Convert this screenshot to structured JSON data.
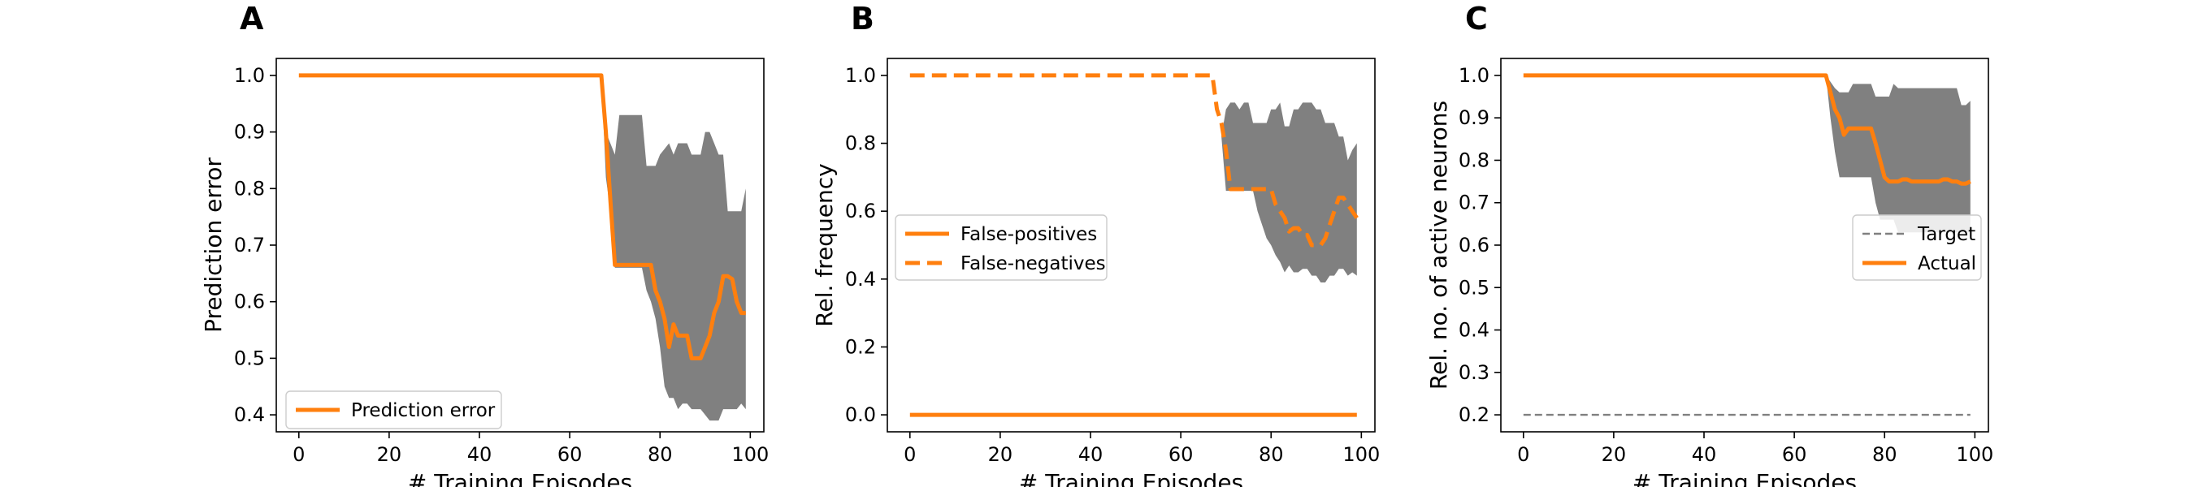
{
  "chart_data": [
    {
      "type": "line",
      "panel_label": "A",
      "xlabel": "# Training Episodes",
      "ylabel": "Prediction error",
      "xlim": [
        -5,
        103
      ],
      "ylim": [
        0.37,
        1.03
      ],
      "xticks": [
        0,
        20,
        40,
        60,
        80,
        100
      ],
      "yticks": [
        0.4,
        0.5,
        0.6,
        0.7,
        0.8,
        0.9,
        1.0
      ],
      "ytick_labels": [
        "0.4",
        "0.5",
        "0.6",
        "0.7",
        "0.8",
        "0.9",
        "1.0"
      ],
      "grid": false,
      "legend_position": "lower-left",
      "band": {
        "color": "#808080",
        "x": [
          67,
          68,
          69,
          70,
          71,
          72,
          73,
          74,
          75,
          76,
          77,
          78,
          79,
          80,
          81,
          82,
          83,
          84,
          85,
          86,
          87,
          88,
          89,
          90,
          91,
          92,
          93,
          94,
          95,
          96,
          97,
          98,
          99
        ],
        "upper": [
          1.0,
          0.9,
          0.88,
          0.86,
          0.93,
          0.93,
          0.93,
          0.93,
          0.93,
          0.93,
          0.84,
          0.84,
          0.84,
          0.86,
          0.87,
          0.88,
          0.86,
          0.88,
          0.88,
          0.88,
          0.86,
          0.86,
          0.86,
          0.9,
          0.9,
          0.88,
          0.86,
          0.86,
          0.76,
          0.76,
          0.76,
          0.76,
          0.8
        ],
        "lower": [
          1.0,
          0.82,
          0.76,
          0.66,
          0.66,
          0.66,
          0.66,
          0.66,
          0.66,
          0.66,
          0.62,
          0.6,
          0.57,
          0.52,
          0.45,
          0.43,
          0.43,
          0.41,
          0.42,
          0.42,
          0.41,
          0.41,
          0.41,
          0.4,
          0.39,
          0.39,
          0.39,
          0.41,
          0.41,
          0.41,
          0.41,
          0.42,
          0.41
        ]
      },
      "series": [
        {
          "name": "Prediction error",
          "style": "solid",
          "color": "#ff7f0e",
          "x": [
            0,
            67,
            68,
            69,
            70,
            71,
            72,
            73,
            74,
            75,
            76,
            77,
            78,
            79,
            80,
            81,
            82,
            83,
            84,
            85,
            86,
            87,
            88,
            89,
            90,
            91,
            92,
            93,
            94,
            95,
            96,
            97,
            98,
            99
          ],
          "y": [
            1.0,
            1.0,
            0.9,
            0.78,
            0.665,
            0.665,
            0.665,
            0.665,
            0.665,
            0.665,
            0.665,
            0.665,
            0.665,
            0.62,
            0.6,
            0.57,
            0.52,
            0.56,
            0.54,
            0.54,
            0.54,
            0.5,
            0.5,
            0.5,
            0.52,
            0.54,
            0.58,
            0.6,
            0.645,
            0.645,
            0.64,
            0.6,
            0.58,
            0.58
          ]
        }
      ]
    },
    {
      "type": "line",
      "panel_label": "B",
      "xlabel": "# Training Episodes",
      "ylabel": "Rel. frequency",
      "xlim": [
        -5,
        103
      ],
      "ylim": [
        -0.05,
        1.05
      ],
      "xticks": [
        0,
        20,
        40,
        60,
        80,
        100
      ],
      "yticks": [
        0.0,
        0.2,
        0.4,
        0.6,
        0.8,
        1.0
      ],
      "ytick_labels": [
        "0.0",
        "0.2",
        "0.4",
        "0.6",
        "0.8",
        "1.0"
      ],
      "grid": false,
      "legend_position": "center-left",
      "band": {
        "color": "#808080",
        "x": [
          67,
          68,
          69,
          70,
          71,
          72,
          73,
          74,
          75,
          76,
          77,
          78,
          79,
          80,
          81,
          82,
          83,
          84,
          85,
          86,
          87,
          88,
          89,
          90,
          91,
          92,
          93,
          94,
          95,
          96,
          97,
          98,
          99
        ],
        "upper": [
          1.0,
          0.86,
          0.82,
          0.9,
          0.92,
          0.92,
          0.9,
          0.92,
          0.92,
          0.86,
          0.86,
          0.86,
          0.86,
          0.9,
          0.9,
          0.92,
          0.85,
          0.85,
          0.9,
          0.9,
          0.92,
          0.92,
          0.92,
          0.9,
          0.9,
          0.86,
          0.86,
          0.86,
          0.82,
          0.82,
          0.75,
          0.78,
          0.8
        ],
        "lower": [
          1.0,
          0.86,
          0.82,
          0.66,
          0.66,
          0.66,
          0.66,
          0.66,
          0.66,
          0.66,
          0.6,
          0.56,
          0.52,
          0.5,
          0.47,
          0.45,
          0.42,
          0.44,
          0.42,
          0.42,
          0.43,
          0.43,
          0.41,
          0.41,
          0.39,
          0.39,
          0.41,
          0.41,
          0.43,
          0.43,
          0.41,
          0.42,
          0.41
        ]
      },
      "series": [
        {
          "name": "False-positives",
          "style": "solid",
          "color": "#ff7f0e",
          "x": [
            0,
            99
          ],
          "y": [
            0.0,
            0.0
          ]
        },
        {
          "name": "False-negatives",
          "style": "dashed",
          "color": "#ff7f0e",
          "x": [
            0,
            67,
            68,
            69,
            70,
            71,
            72,
            73,
            74,
            75,
            76,
            77,
            78,
            79,
            80,
            81,
            82,
            83,
            84,
            85,
            86,
            87,
            88,
            89,
            90,
            91,
            92,
            93,
            94,
            95,
            96,
            97,
            98,
            99
          ],
          "y": [
            1.0,
            1.0,
            0.9,
            0.86,
            0.78,
            0.665,
            0.665,
            0.665,
            0.665,
            0.665,
            0.665,
            0.665,
            0.665,
            0.665,
            0.665,
            0.62,
            0.6,
            0.58,
            0.54,
            0.55,
            0.55,
            0.53,
            0.53,
            0.5,
            0.5,
            0.5,
            0.52,
            0.56,
            0.6,
            0.64,
            0.64,
            0.62,
            0.6,
            0.58
          ]
        }
      ]
    },
    {
      "type": "line",
      "panel_label": "C",
      "xlabel": "# Training Episodes",
      "ylabel": "Rel. no. of active neurons",
      "xlim": [
        -5,
        103
      ],
      "ylim": [
        0.16,
        1.04
      ],
      "xticks": [
        0,
        20,
        40,
        60,
        80,
        100
      ],
      "yticks": [
        0.2,
        0.3,
        0.4,
        0.5,
        0.6,
        0.7,
        0.8,
        0.9,
        1.0
      ],
      "ytick_labels": [
        "0.2",
        "0.3",
        "0.4",
        "0.5",
        "0.6",
        "0.7",
        "0.8",
        "0.9",
        "1.0"
      ],
      "grid": false,
      "legend_position": "center-right",
      "band": {
        "color": "#808080",
        "x": [
          67,
          68,
          69,
          70,
          71,
          72,
          73,
          74,
          75,
          76,
          77,
          78,
          79,
          80,
          81,
          82,
          83,
          84,
          85,
          86,
          87,
          88,
          89,
          90,
          91,
          92,
          93,
          94,
          95,
          96,
          97,
          98,
          99
        ],
        "upper": [
          1.0,
          0.985,
          0.97,
          0.96,
          0.96,
          0.96,
          0.98,
          0.98,
          0.98,
          0.98,
          0.98,
          0.95,
          0.95,
          0.95,
          0.95,
          0.98,
          0.97,
          0.97,
          0.97,
          0.97,
          0.97,
          0.97,
          0.97,
          0.97,
          0.97,
          0.97,
          0.97,
          0.97,
          0.97,
          0.97,
          0.93,
          0.93,
          0.94
        ],
        "lower": [
          1.0,
          0.9,
          0.82,
          0.76,
          0.76,
          0.76,
          0.76,
          0.76,
          0.76,
          0.76,
          0.76,
          0.7,
          0.66,
          0.66,
          0.66,
          0.66,
          0.63,
          0.63,
          0.63,
          0.63,
          0.63,
          0.63,
          0.63,
          0.63,
          0.63,
          0.63,
          0.63,
          0.63,
          0.63,
          0.63,
          0.63,
          0.63,
          0.63
        ]
      },
      "series": [
        {
          "name": "Target",
          "style": "dashed",
          "color": "#808080",
          "x": [
            0,
            99
          ],
          "y": [
            0.2,
            0.2
          ]
        },
        {
          "name": "Actual",
          "style": "solid",
          "color": "#ff7f0e",
          "x": [
            0,
            67,
            68,
            69,
            70,
            71,
            72,
            73,
            74,
            75,
            76,
            77,
            78,
            79,
            80,
            81,
            82,
            83,
            84,
            85,
            86,
            87,
            88,
            89,
            90,
            91,
            92,
            93,
            94,
            95,
            96,
            97,
            98,
            99
          ],
          "y": [
            1.0,
            1.0,
            0.96,
            0.92,
            0.9,
            0.86,
            0.875,
            0.875,
            0.875,
            0.875,
            0.875,
            0.875,
            0.84,
            0.8,
            0.76,
            0.75,
            0.75,
            0.75,
            0.755,
            0.755,
            0.75,
            0.75,
            0.75,
            0.75,
            0.75,
            0.75,
            0.75,
            0.755,
            0.755,
            0.75,
            0.75,
            0.745,
            0.745,
            0.75
          ]
        }
      ]
    }
  ]
}
